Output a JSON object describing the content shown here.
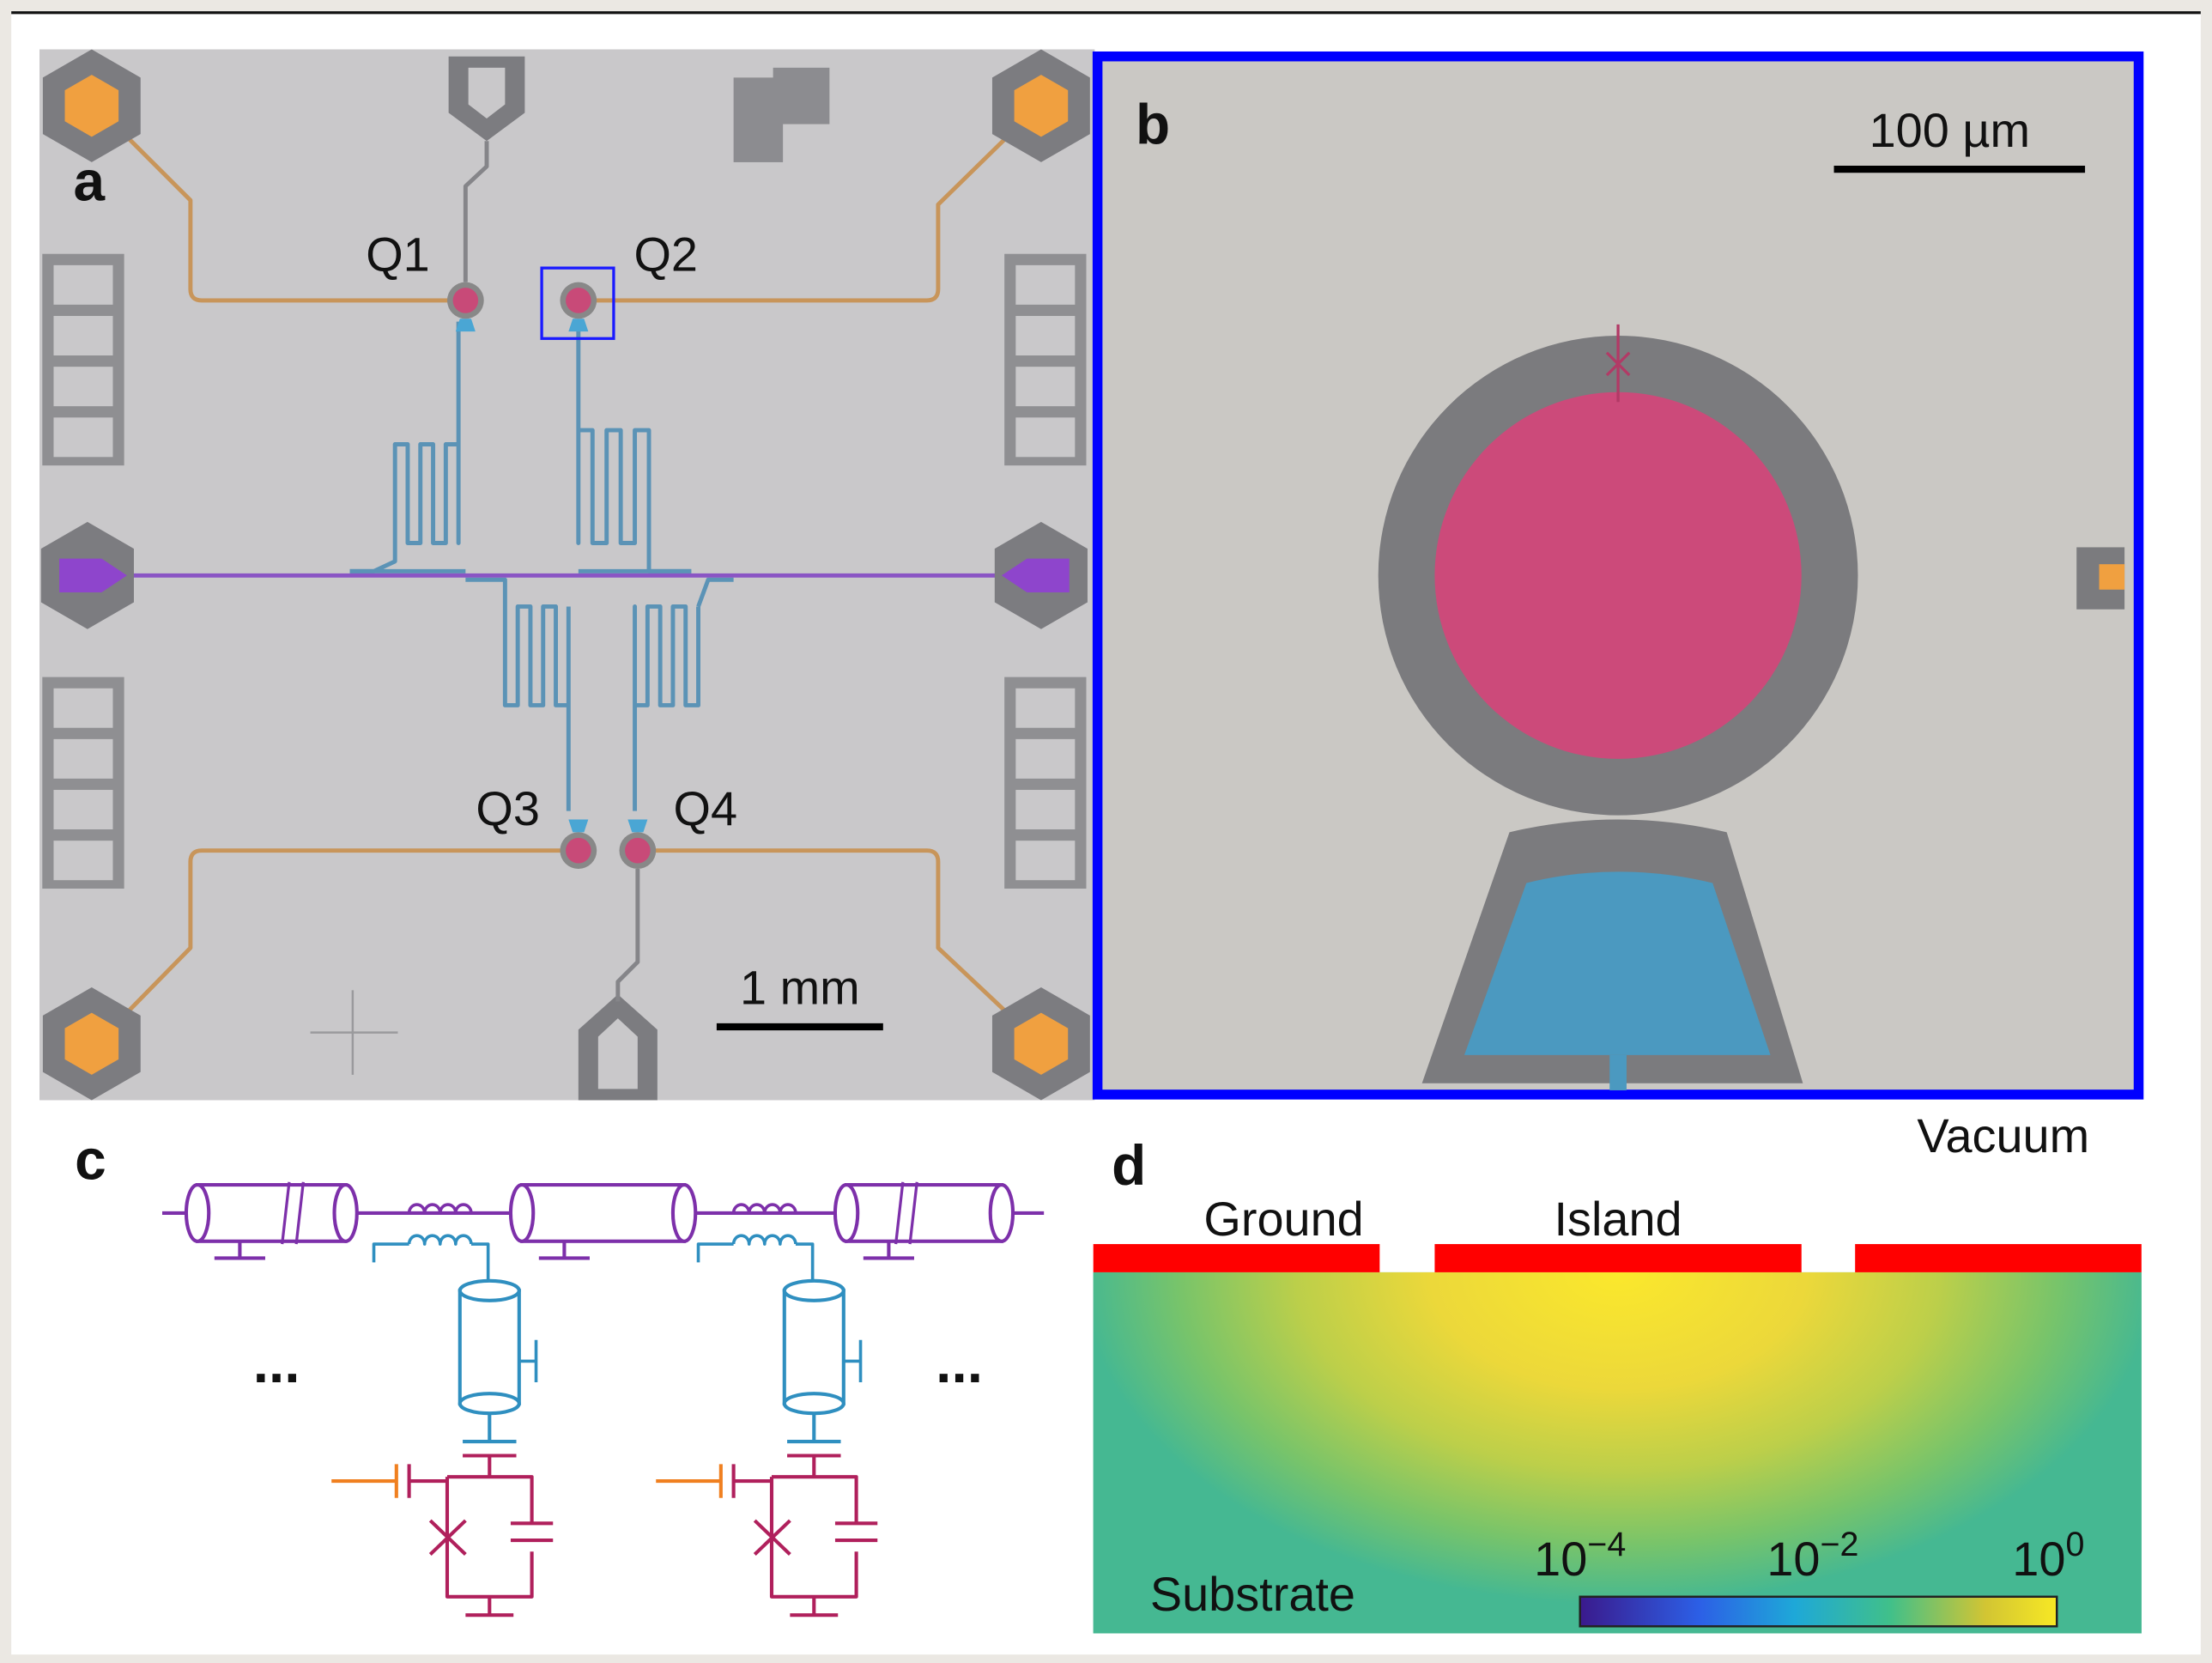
{
  "panels": {
    "a": {
      "label": "a",
      "qubits": [
        "Q1",
        "Q2",
        "Q3",
        "Q4"
      ],
      "scale_bar": "1 mm"
    },
    "b": {
      "label": "b",
      "scale_bar": "100 µm"
    },
    "c": {
      "label": "c",
      "ellipsis_left": "...",
      "ellipsis_right": "..."
    },
    "d": {
      "label": "d",
      "regions": {
        "vacuum": "Vacuum",
        "ground": "Ground",
        "island": "Island",
        "substrate": "Substrate"
      },
      "colorbar": {
        "ticks": [
          {
            "base": "10",
            "exponent": "−4"
          },
          {
            "base": "10",
            "exponent": "−2"
          },
          {
            "base": "10",
            "exponent": "0"
          }
        ]
      }
    }
  }
}
